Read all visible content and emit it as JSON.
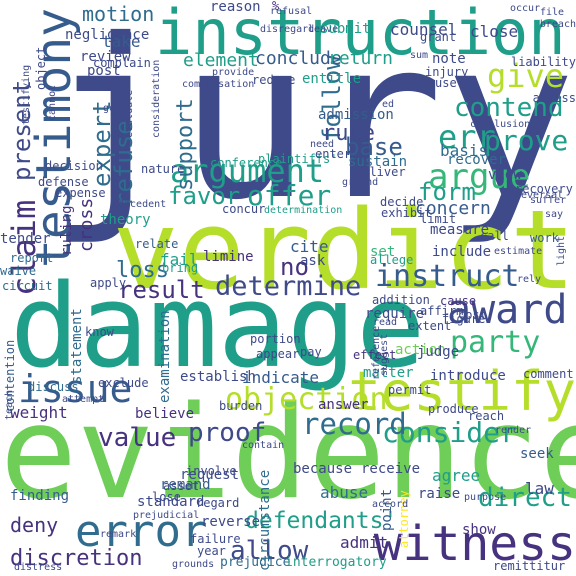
{
  "colors": {
    "background": "#ffffff",
    "dark_purple": "#46327e",
    "indigo": "#3e4a89",
    "blue": "#365c8d",
    "teal_blue": "#2f6c8e",
    "teal": "#24878e",
    "green_teal": "#1f9e89",
    "green": "#35b779",
    "light_green": "#6ece58",
    "yellow_green": "#b5de2b",
    "yellow": "#fde725"
  },
  "words": [
    {
      "text": "jury",
      "color": "indigo"
    },
    {
      "text": "instruction",
      "color": "green_teal"
    },
    {
      "text": "testimony",
      "color": "blue"
    },
    {
      "text": "verdict",
      "color": "yellow_green"
    },
    {
      "text": "damage",
      "color": "green_teal"
    },
    {
      "text": "evidence",
      "color": "light_green"
    },
    {
      "text": "testify",
      "color": "yellow_green"
    },
    {
      "text": "witness",
      "color": "dark_purple"
    },
    {
      "text": "error",
      "color": "teal_blue"
    },
    {
      "text": "award",
      "color": "indigo"
    },
    {
      "text": "issue",
      "color": "blue"
    },
    {
      "text": "argument",
      "color": "green_teal"
    },
    {
      "text": "argue",
      "color": "green"
    },
    {
      "text": "give",
      "color": "yellow_green"
    },
    {
      "text": "contend",
      "color": "green_teal"
    },
    {
      "text": "err",
      "color": "green_teal"
    },
    {
      "text": "prove",
      "color": "green_teal"
    },
    {
      "text": "claim",
      "color": "dark_purple"
    },
    {
      "text": "instruct",
      "color": "blue"
    },
    {
      "text": "determine",
      "color": "indigo"
    },
    {
      "text": "objection",
      "color": "yellow_green"
    },
    {
      "text": "consider",
      "color": "green_teal"
    },
    {
      "text": "party",
      "color": "green"
    },
    {
      "text": "record",
      "color": "teal_blue"
    },
    {
      "text": "offer",
      "color": "green_teal"
    },
    {
      "text": "favor",
      "color": "green_teal"
    },
    {
      "text": "expert",
      "color": "teal_blue"
    },
    {
      "text": "present",
      "color": "indigo"
    },
    {
      "text": "refuse",
      "color": "teal_blue"
    },
    {
      "text": "follow",
      "color": "teal_blue"
    },
    {
      "text": "support",
      "color": "teal_blue"
    },
    {
      "text": "base",
      "color": "blue"
    },
    {
      "text": "form",
      "color": "green_teal"
    },
    {
      "text": "rule",
      "color": "indigo"
    },
    {
      "text": "result",
      "color": "dark_purple"
    },
    {
      "text": "value",
      "color": "dark_purple"
    },
    {
      "text": "proof",
      "color": "indigo"
    },
    {
      "text": "allow",
      "color": "indigo"
    },
    {
      "text": "defendants'",
      "color": "green_teal"
    },
    {
      "text": "discretion",
      "color": "dark_purple"
    },
    {
      "text": "direct",
      "color": "green_teal"
    },
    {
      "text": "no",
      "color": "dark_purple"
    },
    {
      "text": "loss",
      "color": "teal_blue"
    },
    {
      "text": "motion",
      "color": "teal_blue"
    },
    {
      "text": "concern",
      "color": "blue"
    },
    {
      "text": "conclude",
      "color": "blue"
    },
    {
      "text": "return",
      "color": "green_teal"
    },
    {
      "text": "element",
      "color": "green_teal"
    },
    {
      "text": "take",
      "color": "blue"
    },
    {
      "text": "review",
      "color": "indigo"
    },
    {
      "text": "post",
      "color": "indigo"
    },
    {
      "text": "note",
      "color": "indigo"
    },
    {
      "text": "counsel",
      "color": "indigo"
    },
    {
      "text": "submit",
      "color": "green_teal"
    },
    {
      "text": "close",
      "color": "indigo"
    },
    {
      "text": "reason",
      "color": "indigo"
    },
    {
      "text": "negligence",
      "color": "indigo"
    },
    {
      "text": "sustain",
      "color": "teal_blue"
    },
    {
      "text": "admission",
      "color": "blue"
    },
    {
      "text": "basis",
      "color": "teal_blue"
    },
    {
      "text": "entitle",
      "color": "green_teal"
    },
    {
      "text": "recover",
      "color": "teal_blue"
    },
    {
      "text": "view",
      "color": "indigo"
    },
    {
      "text": "theory",
      "color": "green_teal"
    },
    {
      "text": "cross",
      "color": "dark_purple"
    },
    {
      "text": "ruling",
      "color": "dark_purple"
    },
    {
      "text": "fail",
      "color": "green_teal"
    },
    {
      "text": "cite",
      "color": "blue"
    },
    {
      "text": "ask",
      "color": "indigo"
    },
    {
      "text": "limine",
      "color": "dark_purple"
    },
    {
      "text": "set",
      "color": "green"
    },
    {
      "text": "measure",
      "color": "indigo"
    },
    {
      "text": "include",
      "color": "indigo"
    },
    {
      "text": "require",
      "color": "indigo"
    },
    {
      "text": "indicate",
      "color": "blue"
    },
    {
      "text": "establish",
      "color": "indigo"
    },
    {
      "text": "matter",
      "color": "green_teal"
    },
    {
      "text": "action",
      "color": "light_green"
    },
    {
      "text": "judge",
      "color": "indigo"
    },
    {
      "text": "introduce",
      "color": "indigo"
    },
    {
      "text": "answer",
      "color": "dark_purple"
    },
    {
      "text": "believe",
      "color": "dark_purple"
    },
    {
      "text": "request",
      "color": "indigo"
    },
    {
      "text": "remand",
      "color": "blue"
    },
    {
      "text": "standard",
      "color": "indigo"
    },
    {
      "text": "weight",
      "color": "dark_purple"
    },
    {
      "text": "receive",
      "color": "indigo"
    },
    {
      "text": "because",
      "color": "indigo"
    },
    {
      "text": "finding",
      "color": "blue"
    },
    {
      "text": "circumstance",
      "color": "teal_blue"
    },
    {
      "text": "abuse",
      "color": "teal_blue"
    },
    {
      "text": "agree",
      "color": "green_teal"
    },
    {
      "text": "raise",
      "color": "indigo"
    },
    {
      "text": "law",
      "color": "indigo"
    },
    {
      "text": "deny",
      "color": "dark_purple"
    },
    {
      "text": "reverse",
      "color": "indigo"
    },
    {
      "text": "show",
      "color": "dark_purple"
    },
    {
      "text": "admit",
      "color": "dark_purple"
    },
    {
      "text": "prejudice",
      "color": "teal_blue"
    },
    {
      "text": "interrogatory",
      "color": "green_teal"
    },
    {
      "text": "point",
      "color": "blue"
    },
    {
      "text": "seek",
      "color": "blue"
    },
    {
      "text": "attorney",
      "color": "yellow"
    },
    {
      "text": "examination",
      "color": "teal_blue"
    },
    {
      "text": "statement",
      "color": "teal_blue"
    },
    {
      "text": "contention",
      "color": "blue"
    },
    {
      "text": "affirm",
      "color": "indigo"
    },
    {
      "text": "extent",
      "color": "indigo"
    },
    {
      "text": "cost",
      "color": "indigo"
    },
    {
      "text": "effect",
      "color": "dark_purple"
    },
    {
      "text": "produce",
      "color": "indigo"
    },
    {
      "text": "portion",
      "color": "indigo"
    },
    {
      "text": "appear",
      "color": "indigo"
    },
    {
      "text": "pay",
      "color": "indigo"
    },
    {
      "text": "exclude",
      "color": "indigo"
    },
    {
      "text": "discuss",
      "color": "teal_blue"
    },
    {
      "text": "tender",
      "color": "indigo"
    },
    {
      "text": "report",
      "color": "teal_blue"
    },
    {
      "text": "waive",
      "color": "teal_blue"
    },
    {
      "text": "circuit",
      "color": "teal_blue"
    },
    {
      "text": "apply",
      "color": "indigo"
    },
    {
      "text": "bring",
      "color": "green_teal"
    },
    {
      "text": "relate",
      "color": "blue"
    },
    {
      "text": "decision",
      "color": "indigo"
    },
    {
      "text": "defense",
      "color": "indigo"
    },
    {
      "text": "expense",
      "color": "indigo"
    },
    {
      "text": "conference",
      "color": "green_teal"
    },
    {
      "text": "plaintiffs'",
      "color": "green_teal"
    },
    {
      "text": "nature",
      "color": "indigo"
    },
    {
      "text": "concur",
      "color": "indigo"
    },
    {
      "text": "determination",
      "color": "green_teal"
    },
    {
      "text": "decide",
      "color": "indigo"
    },
    {
      "text": "exhibit",
      "color": "indigo"
    },
    {
      "text": "limit",
      "color": "indigo"
    },
    {
      "text": "allege",
      "color": "green_teal"
    },
    {
      "text": "addition",
      "color": "indigo"
    },
    {
      "text": "cause",
      "color": "dark_purple"
    },
    {
      "text": "figure",
      "color": "indigo"
    },
    {
      "text": "work",
      "color": "blue"
    },
    {
      "text": "call",
      "color": "indigo"
    },
    {
      "text": "liability",
      "color": "indigo"
    },
    {
      "text": "assess",
      "color": "indigo"
    },
    {
      "text": "conclusion",
      "color": "indigo"
    },
    {
      "text": "ground",
      "color": "indigo"
    },
    {
      "text": "deliver",
      "color": "indigo"
    },
    {
      "text": "enter",
      "color": "indigo"
    },
    {
      "text": "recovery",
      "color": "indigo"
    },
    {
      "text": "injury",
      "color": "indigo"
    },
    {
      "text": "grant",
      "color": "indigo"
    },
    {
      "text": "use",
      "color": "indigo"
    },
    {
      "text": "compensation",
      "color": "indigo"
    },
    {
      "text": "complain",
      "color": "indigo"
    },
    {
      "text": "provide",
      "color": "indigo"
    },
    {
      "text": "reduce",
      "color": "indigo"
    },
    {
      "text": "refusal",
      "color": "indigo"
    },
    {
      "text": "object",
      "color": "indigo"
    },
    {
      "text": "remittitur",
      "color": "indigo"
    },
    {
      "text": "failure",
      "color": "indigo"
    },
    {
      "text": "year",
      "color": "indigo"
    },
    {
      "text": "regard",
      "color": "indigo"
    },
    {
      "text": "lose",
      "color": "indigo"
    },
    {
      "text": "asset",
      "color": "indigo"
    },
    {
      "text": "involve",
      "color": "indigo"
    },
    {
      "text": "burden",
      "color": "indigo"
    },
    {
      "text": "comment",
      "color": "indigo"
    },
    {
      "text": "permit",
      "color": "indigo"
    },
    {
      "text": "know",
      "color": "indigo"
    },
    {
      "text": "reach",
      "color": "indigo"
    },
    {
      "text": "purpose",
      "color": "indigo"
    },
    {
      "text": "reversal",
      "color": "indigo"
    },
    {
      "text": "contain",
      "color": "indigo"
    },
    {
      "text": "accord",
      "color": "indigo"
    },
    {
      "text": "reference",
      "color": "indigo"
    },
    {
      "text": "suggest",
      "color": "indigo"
    },
    {
      "text": "estimate",
      "color": "indigo"
    },
    {
      "text": "rely",
      "color": "indigo"
    },
    {
      "text": "suffer",
      "color": "indigo"
    },
    {
      "text": "file",
      "color": "indigo"
    },
    {
      "text": "need",
      "color": "indigo"
    },
    {
      "text": "leave",
      "color": "indigo"
    },
    {
      "text": "sum",
      "color": "indigo"
    },
    {
      "text": "occur",
      "color": "indigo"
    },
    {
      "text": "breach",
      "color": "indigo"
    },
    {
      "text": "consideration",
      "color": "indigo"
    },
    {
      "text": "evaluate",
      "color": "indigo"
    },
    {
      "text": "render",
      "color": "indigo"
    },
    {
      "text": "say",
      "color": "indigo"
    },
    {
      "text": "go",
      "color": "indigo"
    },
    {
      "text": "disregard",
      "color": "indigo"
    },
    {
      "text": "read",
      "color": "indigo"
    },
    {
      "text": "ed",
      "color": "indigo"
    },
    {
      "text": "%",
      "color": "dark_purple"
    },
    {
      "text": "cannot",
      "color": "indigo"
    },
    {
      "text": "teach",
      "color": "indigo"
    },
    {
      "text": "remark",
      "color": "indigo"
    },
    {
      "text": "testifying",
      "color": "indigo"
    },
    {
      "text": "distress",
      "color": "indigo"
    },
    {
      "text": "prejudicial",
      "color": "indigo"
    },
    {
      "text": "light",
      "color": "indigo"
    },
    {
      "text": "decedent",
      "color": "indigo"
    },
    {
      "text": "attempt",
      "color": "indigo"
    },
    {
      "text": "grounds",
      "color": "indigo"
    }
  ]
}
